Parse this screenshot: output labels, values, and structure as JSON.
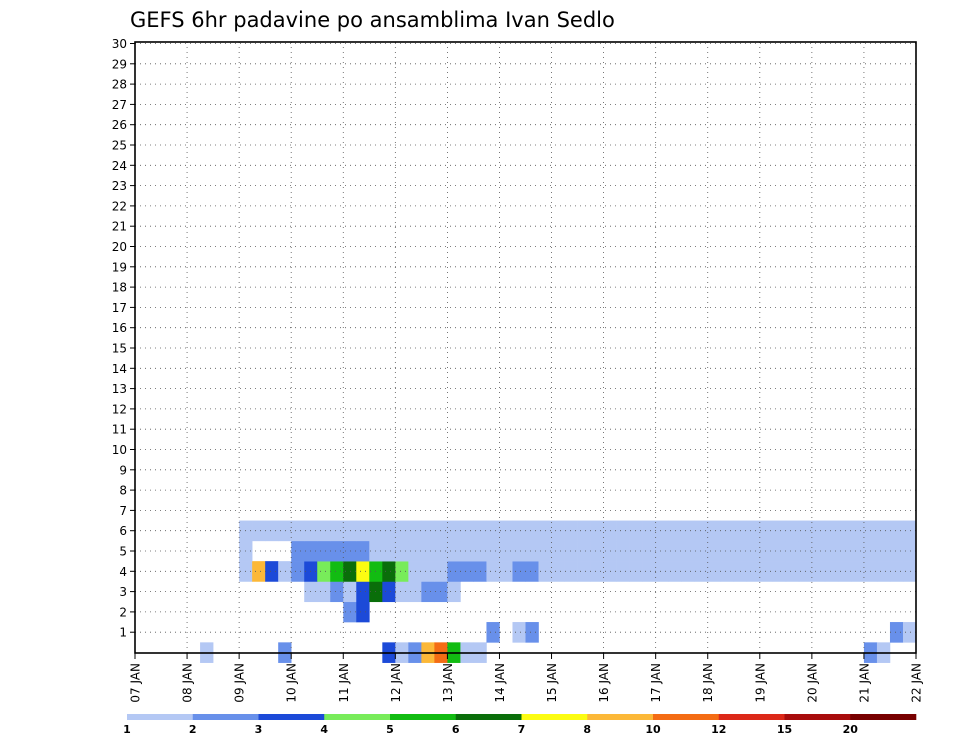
{
  "chart_data": {
    "type": "heatmap",
    "title": "GEFS 6hr padavine po ansamblima Ivan Sedlo",
    "y_ticks": [
      "1",
      "2",
      "3",
      "4",
      "5",
      "6",
      "7",
      "8",
      "9",
      "10",
      "11",
      "12",
      "13",
      "14",
      "15",
      "16",
      "17",
      "18",
      "19",
      "20",
      "21",
      "22",
      "23",
      "24",
      "25",
      "26",
      "27",
      "28",
      "29",
      "30"
    ],
    "x_ticks": [
      "07 JAN",
      "08 JAN",
      "09 JAN",
      "10 JAN",
      "11 JAN",
      "12 JAN",
      "13 JAN",
      "14 JAN",
      "15 JAN",
      "16 JAN",
      "17 JAN",
      "18 JAN",
      "19 JAN",
      "20 JAN",
      "21 JAN",
      "22 JAN"
    ],
    "legend": {
      "labels": [
        "1",
        "2",
        "3",
        "4",
        "5",
        "6",
        "7",
        "8",
        "10",
        "12",
        "15",
        "20"
      ],
      "colors": [
        "#b4c8f4",
        "#6890ea",
        "#1c4ad8",
        "#78ec5a",
        "#12bc12",
        "#0a6e0a",
        "#fcfc12",
        "#fcb838",
        "#f46c14",
        "#dc2818",
        "#a80c0c",
        "#780000"
      ]
    },
    "grid": true,
    "cells": [
      [
        0,
        5,
        1
      ],
      [
        0,
        11,
        2
      ],
      [
        0,
        19,
        3
      ],
      [
        0,
        20,
        1
      ],
      [
        0,
        21,
        2
      ],
      [
        0,
        22,
        8
      ],
      [
        0,
        23,
        9
      ],
      [
        0,
        24,
        5
      ],
      [
        0,
        25,
        1
      ],
      [
        0,
        26,
        1
      ],
      [
        0,
        56,
        2
      ],
      [
        0,
        57,
        1
      ],
      [
        1,
        27,
        2
      ],
      [
        1,
        29,
        1
      ],
      [
        1,
        30,
        2
      ],
      [
        1,
        58,
        2
      ],
      [
        1,
        59,
        1
      ],
      [
        2,
        16,
        2
      ],
      [
        2,
        17,
        3
      ],
      [
        3,
        13,
        1
      ],
      [
        3,
        14,
        1
      ],
      [
        3,
        15,
        2
      ],
      [
        3,
        16,
        1
      ],
      [
        3,
        17,
        3
      ],
      [
        3,
        18,
        6
      ],
      [
        3,
        19,
        3
      ],
      [
        3,
        20,
        1
      ],
      [
        3,
        21,
        1
      ],
      [
        3,
        22,
        2
      ],
      [
        3,
        23,
        2
      ],
      [
        3,
        24,
        1
      ],
      [
        4,
        8,
        1
      ],
      [
        4,
        9,
        8
      ],
      [
        4,
        10,
        3
      ],
      [
        4,
        11,
        1
      ],
      [
        4,
        12,
        2
      ],
      [
        4,
        13,
        3
      ],
      [
        4,
        14,
        4
      ],
      [
        4,
        15,
        5
      ],
      [
        4,
        16,
        6
      ],
      [
        4,
        17,
        7
      ],
      [
        4,
        18,
        5
      ],
      [
        4,
        19,
        6
      ],
      [
        4,
        20,
        4
      ],
      [
        4,
        21,
        1
      ],
      [
        4,
        22,
        1
      ],
      [
        4,
        23,
        1
      ],
      [
        4,
        24,
        2
      ],
      [
        4,
        25,
        2
      ],
      [
        4,
        26,
        2
      ],
      [
        4,
        27,
        1
      ],
      [
        4,
        28,
        1
      ],
      [
        4,
        29,
        2
      ],
      [
        4,
        30,
        2
      ],
      [
        4,
        31,
        1
      ],
      [
        4,
        32,
        1
      ],
      [
        4,
        33,
        1
      ],
      [
        4,
        34,
        1
      ],
      [
        4,
        35,
        1
      ],
      [
        4,
        36,
        1
      ],
      [
        4,
        37,
        1
      ],
      [
        4,
        38,
        1
      ],
      [
        4,
        39,
        1
      ],
      [
        4,
        40,
        1
      ],
      [
        4,
        41,
        1
      ],
      [
        4,
        42,
        1
      ],
      [
        4,
        43,
        1
      ],
      [
        4,
        44,
        1
      ],
      [
        4,
        45,
        1
      ],
      [
        4,
        46,
        1
      ],
      [
        4,
        47,
        1
      ],
      [
        4,
        48,
        1
      ],
      [
        4,
        49,
        1
      ],
      [
        4,
        50,
        1
      ],
      [
        4,
        51,
        1
      ],
      [
        4,
        52,
        1
      ],
      [
        4,
        53,
        1
      ],
      [
        4,
        54,
        1
      ],
      [
        4,
        55,
        1
      ],
      [
        4,
        56,
        1
      ],
      [
        4,
        57,
        1
      ],
      [
        4,
        58,
        1
      ],
      [
        4,
        59,
        1
      ],
      [
        5,
        8,
        1
      ],
      [
        5,
        12,
        2
      ],
      [
        5,
        13,
        2
      ],
      [
        5,
        14,
        2
      ],
      [
        5,
        15,
        2
      ],
      [
        5,
        16,
        2
      ],
      [
        5,
        17,
        2
      ],
      [
        5,
        18,
        1
      ],
      [
        5,
        19,
        1
      ],
      [
        5,
        20,
        1
      ],
      [
        5,
        21,
        1
      ],
      [
        5,
        22,
        1
      ],
      [
        5,
        23,
        1
      ],
      [
        5,
        24,
        1
      ],
      [
        5,
        25,
        1
      ],
      [
        5,
        26,
        1
      ],
      [
        5,
        27,
        1
      ],
      [
        5,
        28,
        1
      ],
      [
        5,
        29,
        1
      ],
      [
        5,
        30,
        1
      ],
      [
        5,
        31,
        1
      ],
      [
        5,
        32,
        1
      ],
      [
        5,
        33,
        1
      ],
      [
        5,
        34,
        1
      ],
      [
        5,
        35,
        1
      ],
      [
        5,
        36,
        1
      ],
      [
        5,
        37,
        1
      ],
      [
        5,
        38,
        1
      ],
      [
        5,
        39,
        1
      ],
      [
        5,
        40,
        1
      ],
      [
        5,
        41,
        1
      ],
      [
        5,
        42,
        1
      ],
      [
        5,
        43,
        1
      ],
      [
        5,
        44,
        1
      ],
      [
        5,
        45,
        1
      ],
      [
        5,
        46,
        1
      ],
      [
        5,
        47,
        1
      ],
      [
        5,
        48,
        1
      ],
      [
        5,
        49,
        1
      ],
      [
        5,
        50,
        1
      ],
      [
        5,
        51,
        1
      ],
      [
        5,
        52,
        1
      ],
      [
        5,
        53,
        1
      ],
      [
        5,
        54,
        1
      ],
      [
        5,
        55,
        1
      ],
      [
        5,
        56,
        1
      ],
      [
        5,
        57,
        1
      ],
      [
        5,
        58,
        1
      ],
      [
        5,
        59,
        1
      ],
      [
        6,
        8,
        1
      ],
      [
        6,
        9,
        1
      ],
      [
        6,
        10,
        1
      ],
      [
        6,
        11,
        1
      ],
      [
        6,
        12,
        1
      ],
      [
        6,
        13,
        1
      ],
      [
        6,
        14,
        1
      ],
      [
        6,
        15,
        1
      ],
      [
        6,
        16,
        1
      ],
      [
        6,
        17,
        1
      ],
      [
        6,
        18,
        1
      ],
      [
        6,
        19,
        1
      ],
      [
        6,
        20,
        1
      ],
      [
        6,
        21,
        1
      ],
      [
        6,
        22,
        1
      ],
      [
        6,
        23,
        1
      ],
      [
        6,
        24,
        1
      ],
      [
        6,
        25,
        1
      ],
      [
        6,
        26,
        1
      ],
      [
        6,
        27,
        1
      ],
      [
        6,
        28,
        1
      ],
      [
        6,
        29,
        1
      ],
      [
        6,
        30,
        1
      ],
      [
        6,
        31,
        1
      ],
      [
        6,
        32,
        1
      ],
      [
        6,
        33,
        1
      ],
      [
        6,
        34,
        1
      ],
      [
        6,
        35,
        1
      ],
      [
        6,
        36,
        1
      ],
      [
        6,
        37,
        1
      ],
      [
        6,
        38,
        1
      ],
      [
        6,
        39,
        1
      ],
      [
        6,
        40,
        1
      ],
      [
        6,
        41,
        1
      ],
      [
        6,
        42,
        1
      ],
      [
        6,
        43,
        1
      ],
      [
        6,
        44,
        1
      ],
      [
        6,
        45,
        1
      ],
      [
        6,
        46,
        1
      ],
      [
        6,
        47,
        1
      ],
      [
        6,
        48,
        1
      ],
      [
        6,
        49,
        1
      ],
      [
        6,
        50,
        1
      ],
      [
        6,
        51,
        1
      ],
      [
        6,
        52,
        1
      ],
      [
        6,
        53,
        1
      ],
      [
        6,
        54,
        1
      ],
      [
        6,
        55,
        1
      ],
      [
        6,
        56,
        1
      ],
      [
        6,
        57,
        1
      ],
      [
        6,
        58,
        1
      ],
      [
        6,
        59,
        1
      ]
    ]
  }
}
